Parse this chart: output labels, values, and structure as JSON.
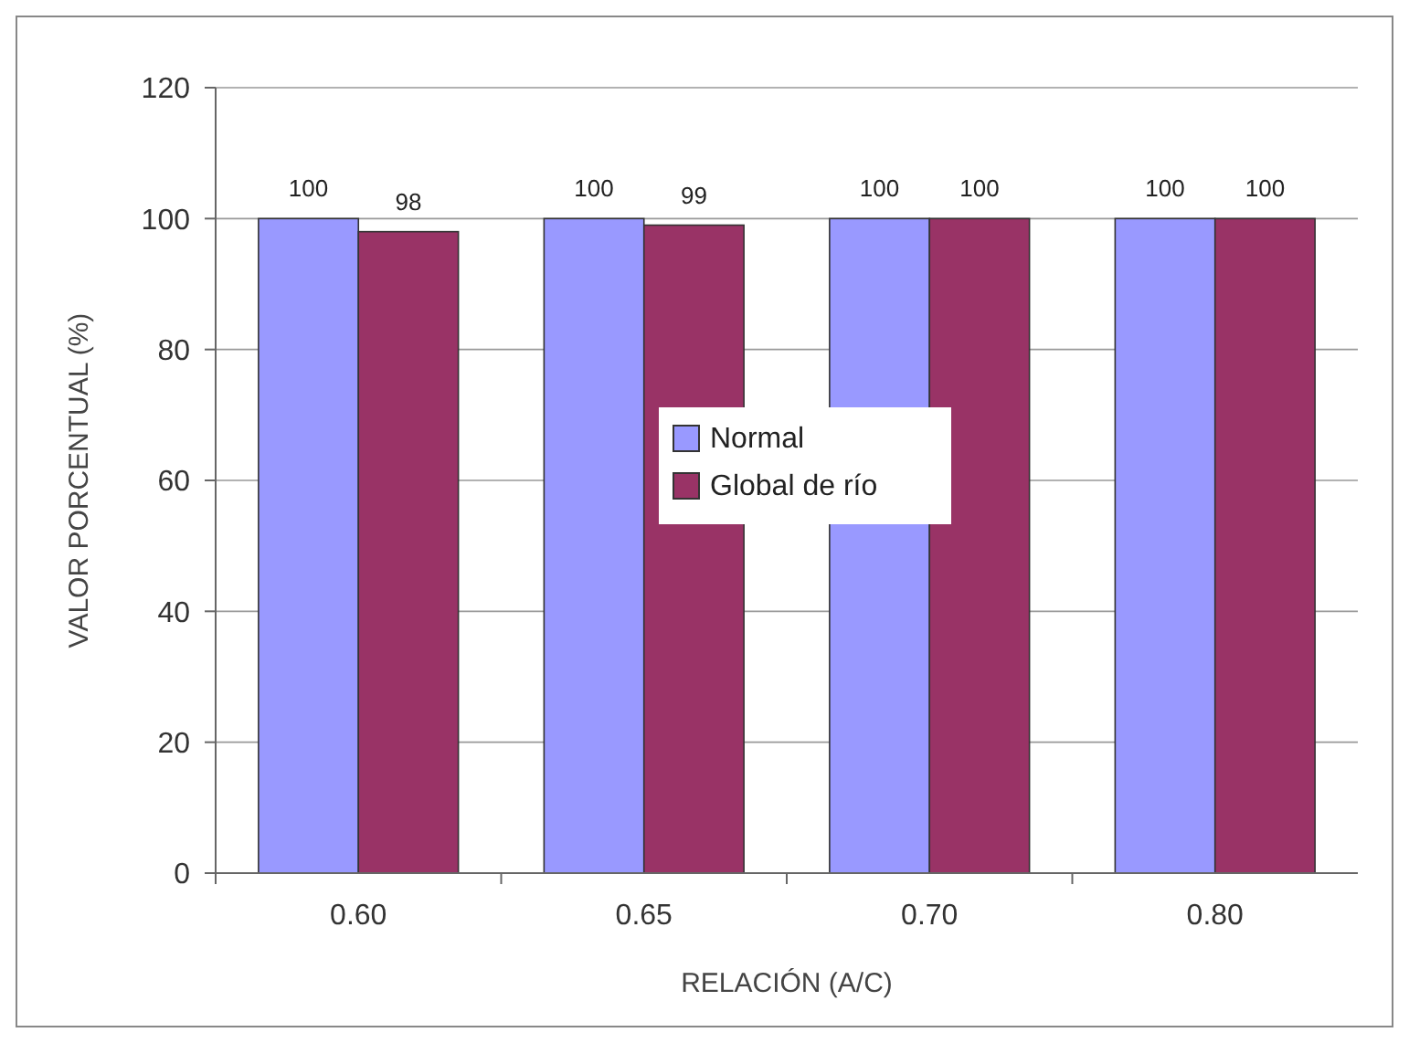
{
  "chart_data": {
    "type": "bar",
    "xlabel": "RELACIÓN (A/C)",
    "ylabel": "VALOR PORCENTUAL (%)",
    "categories": [
      "0.60",
      "0.65",
      "0.70",
      "0.80"
    ],
    "series": [
      {
        "name": "Normal",
        "color": "#9999ff",
        "values": [
          100,
          100,
          100,
          100
        ]
      },
      {
        "name": "Global de río",
        "color": "#993366",
        "values": [
          98,
          99,
          100,
          100
        ]
      }
    ],
    "ylim": [
      0,
      120
    ],
    "yticks": [
      0,
      20,
      40,
      60,
      80,
      100,
      120
    ],
    "grid": "y",
    "legend": "center",
    "data_labels": true
  }
}
